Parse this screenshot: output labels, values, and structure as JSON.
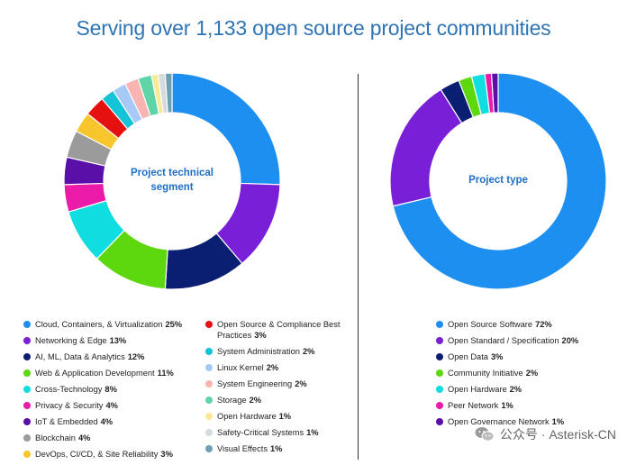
{
  "header": {
    "title": "Serving over 1,133 open source project communities"
  },
  "chart_data": [
    {
      "type": "pie",
      "title": "Project technical segment",
      "categories": [
        "Cloud, Containers, & Virtualization",
        "Networking & Edge",
        "AI, ML, Data & Analytics",
        "Web & Application Development",
        "Cross-Technology",
        "Privacy & Security",
        "IoT & Embedded",
        "Blockchain",
        "DevOps, CI/CD, & Site Reliability",
        "Open Source & Compliance Best Practices",
        "System Administration",
        "Linux Kernel",
        "System Engineering",
        "Storage",
        "Open Hardware",
        "Safety-Critical Systems",
        "Visual Effects"
      ],
      "values": [
        25,
        13,
        12,
        11,
        8,
        4,
        4,
        4,
        3,
        3,
        2,
        2,
        2,
        2,
        1,
        1,
        1
      ],
      "labels": [
        "25%",
        "13%",
        "12%",
        "11%",
        "8%",
        "4%",
        "4%",
        "4%",
        "3%",
        "3%",
        "2%",
        "2%",
        "2%",
        "2%",
        "1%",
        "1%",
        "1%"
      ],
      "colors": [
        "#1d8ff0",
        "#7a1fd8",
        "#0b1f72",
        "#5dd70e",
        "#0fdde0",
        "#ec1aa9",
        "#5a0fa8",
        "#9b9b9b",
        "#f7c62c",
        "#e51010",
        "#15c3d6",
        "#a7c9f5",
        "#f8b4b0",
        "#5fd4a6",
        "#f7eb9a",
        "#d4dadd",
        "#6d9fb3"
      ],
      "legend_columns": [
        9,
        8
      ]
    },
    {
      "type": "pie",
      "title": "Project type",
      "categories": [
        "Open Source Software",
        "Open Standard / Specification",
        "Open Data",
        "Community Initiative",
        "Open Hardware",
        "Peer Network",
        "Open Governance Network"
      ],
      "values": [
        72,
        20,
        3,
        2,
        2,
        1,
        1
      ],
      "labels": [
        "72%",
        "20%",
        "3%",
        "2%",
        "2%",
        "1%",
        "1%"
      ],
      "colors": [
        "#1d8ff0",
        "#7a1fd8",
        "#0b1f72",
        "#5dd70e",
        "#0fdde0",
        "#ec1aa9",
        "#5a0fa8"
      ]
    }
  ],
  "watermark": {
    "text": "公众号 · Asterisk-CN"
  }
}
